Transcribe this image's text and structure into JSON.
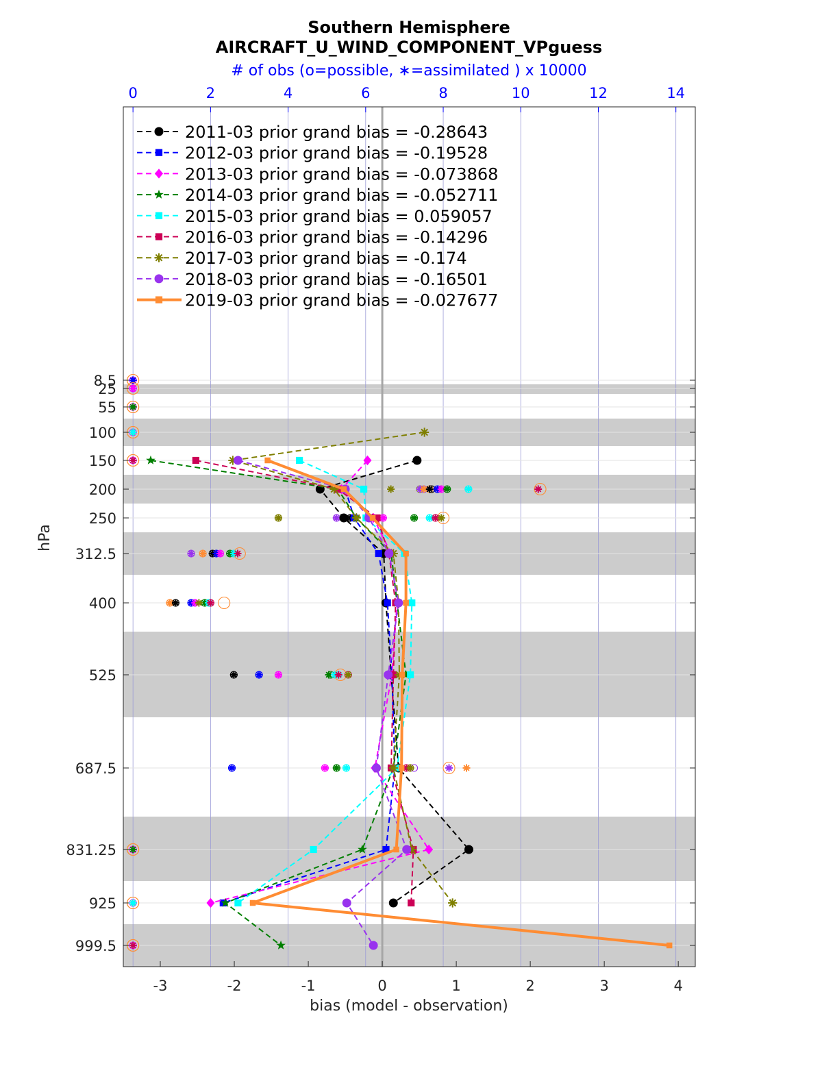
{
  "chart_data": {
    "type": "line",
    "title": "Southern Hemisphere",
    "subtitle": "AIRCRAFT_U_WIND_COMPONENT_VPguess",
    "top_axis_label": "# of obs (o=possible, ∗=assimilated ) x 10000",
    "xlabel": "bias (model - observation)",
    "ylabel": "hPa",
    "xlim": [
      -3.5,
      4.23
    ],
    "xticks": [
      -3,
      -2,
      -1,
      0,
      1,
      2,
      3,
      4
    ],
    "top_xlim": [
      -0.25,
      14.5
    ],
    "top_xticks": [
      0,
      2,
      4,
      6,
      8,
      10,
      12,
      14
    ],
    "levels": [
      "8.5",
      "25",
      "55",
      "100",
      "150",
      "200",
      "250",
      "312.5",
      "400",
      "525",
      "687.5",
      "831.25",
      "925",
      "999.5"
    ],
    "level_values": [
      8.5,
      25,
      55,
      100,
      150,
      200,
      250,
      312.5,
      400,
      525,
      687.5,
      831.25,
      925,
      999.5
    ],
    "grid": true,
    "legend_position": "top-left",
    "series": [
      {
        "name": "2011-03 prior grand bias = -0.28643",
        "color": "#000000",
        "marker": "circle",
        "width": 2,
        "dash": "8,5",
        "values": [
          null,
          null,
          null,
          null,
          0.47,
          -0.84,
          -0.52,
          0.02,
          0.05,
          0.12,
          0.22,
          1.17,
          0.15,
          null
        ]
      },
      {
        "name": "2012-03 prior grand bias = -0.19528",
        "color": "#0000ff",
        "marker": "square",
        "width": 2,
        "dash": "8,5",
        "values": [
          null,
          null,
          null,
          null,
          null,
          -0.5,
          -0.38,
          -0.05,
          0.07,
          0.13,
          0.17,
          0.05,
          -2.15,
          null
        ]
      },
      {
        "name": "2013-03 prior grand bias = -0.073868",
        "color": "#ff00ff",
        "marker": "diamond",
        "width": 2,
        "dash": "8,5",
        "values": [
          null,
          null,
          null,
          null,
          -0.2,
          -0.55,
          -0.12,
          0.12,
          0.2,
          0.13,
          -0.1,
          0.63,
          -2.32,
          null
        ]
      },
      {
        "name": "2014-03 prior grand bias = -0.052711",
        "color": "#007f00",
        "marker": "star",
        "width": 2,
        "dash": "8,5",
        "values": [
          null,
          null,
          null,
          null,
          -3.13,
          -0.6,
          -0.35,
          0.12,
          0.2,
          0.32,
          0.15,
          -0.27,
          -2.12,
          -1.37
        ]
      },
      {
        "name": "2015-03 prior grand bias = 0.059057",
        "color": "#00ffff",
        "marker": "square",
        "width": 2,
        "dash": "8,5",
        "values": [
          null,
          null,
          null,
          null,
          -1.12,
          -0.25,
          -0.22,
          0.3,
          0.4,
          0.38,
          0.2,
          -0.93,
          -1.95,
          null
        ]
      },
      {
        "name": "2016-03 prior grand bias = -0.14296",
        "color": "#cc0055",
        "marker": "square",
        "width": 2,
        "dash": "8,5",
        "values": [
          null,
          null,
          null,
          null,
          -2.52,
          -0.6,
          -0.07,
          0.09,
          0.18,
          0.15,
          0.12,
          0.42,
          0.39,
          null
        ]
      },
      {
        "name": "2017-03 prior grand bias = -0.174",
        "color": "#7f7f00",
        "marker": "asterisk",
        "width": 2,
        "dash": "8,5",
        "values": [
          null,
          null,
          null,
          0.57,
          -2.02,
          -0.65,
          -0.35,
          0.15,
          0.22,
          0.23,
          0.15,
          0.4,
          0.95,
          null
        ]
      },
      {
        "name": "2018-03 prior grand bias = -0.16501",
        "color": "#9933ee",
        "marker": "circle",
        "width": 2,
        "dash": "8,5",
        "values": [
          null,
          null,
          null,
          null,
          -1.95,
          -0.5,
          -0.18,
          0.09,
          0.22,
          0.08,
          -0.08,
          0.33,
          -0.48,
          -0.12
        ]
      },
      {
        "name": "2019-03 prior grand bias = -0.027677",
        "color": "#ff8c33",
        "marker": "square",
        "width": 4,
        "dash": "",
        "values": [
          null,
          null,
          null,
          null,
          -1.55,
          -0.52,
          -0.13,
          0.32,
          0.32,
          0.27,
          0.26,
          0.19,
          -1.75,
          3.88
        ]
      }
    ],
    "obs_count_markers": [
      {
        "level": "8.5",
        "possible": [
          0,
          0
        ],
        "assimilated": [
          0,
          0
        ]
      },
      {
        "level": "25",
        "possible": [
          0,
          0
        ],
        "assimilated": [
          0,
          0
        ]
      },
      {
        "level": "55",
        "possible": [
          0,
          0
        ],
        "assimilated": [
          0,
          0
        ]
      },
      {
        "level": "100",
        "possible": [
          0,
          0
        ],
        "assimilated": [
          0,
          0
        ]
      },
      {
        "level": "150",
        "possible": [
          0,
          0
        ],
        "assimilated": [
          0,
          0
        ]
      },
      {
        "level": "200",
        "possible": [
          5.35,
          7.4,
          7.5,
          7.65,
          7.7,
          7.85,
          7.95,
          8.1,
          8.65,
          10.5
        ],
        "assimilated": [
          5.35,
          6.65,
          7.4,
          7.5,
          7.65,
          7.85,
          7.95,
          8.1,
          8.65,
          10.45
        ]
      },
      {
        "level": "250",
        "possible": [
          3.75,
          5.25,
          5.45,
          5.6,
          5.7,
          6.45,
          7.25,
          7.65,
          7.8,
          8.0
        ],
        "assimilated": [
          3.75,
          5.25,
          5.45,
          5.6,
          5.7,
          6.45,
          7.25,
          7.65,
          7.8,
          7.95
        ]
      },
      {
        "level": "312.5",
        "possible": [
          1.5,
          1.8,
          2.05,
          2.15,
          2.25,
          2.5,
          2.6,
          2.75
        ],
        "assimilated": [
          1.5,
          1.8,
          2.05,
          2.15,
          2.25,
          2.5,
          2.6,
          2.7
        ]
      },
      {
        "level": "400",
        "possible": [
          0.95,
          1.1,
          1.5,
          1.6,
          1.85,
          1.95,
          2.0,
          2.35
        ],
        "assimilated": [
          0.95,
          1.1,
          1.5,
          1.6,
          1.85,
          1.95,
          2.0,
          1.7
        ]
      },
      {
        "level": "525",
        "possible": [
          2.6,
          3.25,
          3.75,
          5.1,
          5.3,
          5.55,
          5.35
        ],
        "assimilated": [
          2.6,
          3.25,
          3.75,
          5.05,
          5.2,
          5.3,
          5.55
        ]
      },
      {
        "level": "687.5",
        "possible": [
          2.55,
          4.95,
          5.25,
          5.5,
          7.05,
          7.15,
          7.25,
          8.15
        ],
        "assimilated": [
          2.55,
          4.95,
          5.25,
          5.5,
          7.05,
          7.15,
          8.15,
          8.6
        ]
      },
      {
        "level": "831.25",
        "possible": [
          0,
          0
        ],
        "assimilated": [
          0,
          0
        ]
      },
      {
        "level": "925",
        "possible": [
          0,
          0
        ],
        "assimilated": [
          0,
          0
        ]
      },
      {
        "level": "999.5",
        "possible": [
          0,
          0
        ],
        "assimilated": [
          0,
          0
        ]
      }
    ]
  }
}
